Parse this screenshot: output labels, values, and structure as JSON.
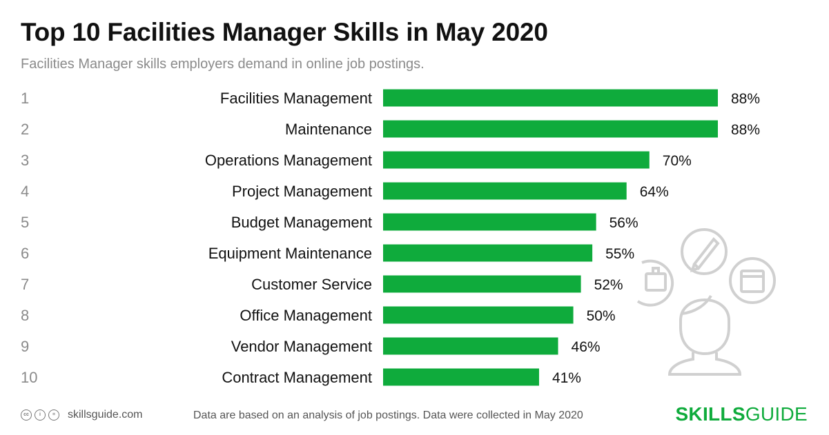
{
  "title": "Top 10 Facilities Manager Skills in May 2020",
  "subtitle": "Facilities Manager skills employers demand in online job postings.",
  "chart_data": {
    "type": "bar",
    "orientation": "horizontal",
    "title": "Top 10 Facilities Manager Skills in May 2020",
    "ranks": [
      "1",
      "2",
      "3",
      "4",
      "5",
      "6",
      "7",
      "8",
      "9",
      "10"
    ],
    "categories": [
      "Facilities Management",
      "Maintenance",
      "Operations Management",
      "Project Management",
      "Budget Management",
      "Equipment Maintenance",
      "Customer Service",
      "Office Management",
      "Vendor Management",
      "Contract Management"
    ],
    "values": [
      88,
      88,
      70,
      64,
      56,
      55,
      52,
      50,
      46,
      41
    ],
    "value_labels": [
      "88%",
      "88%",
      "70%",
      "64%",
      "56%",
      "55%",
      "52%",
      "50%",
      "46%",
      "41%"
    ],
    "unit": "%",
    "xlim": [
      0,
      88
    ],
    "bar_color": "#0fab3c"
  },
  "footer": {
    "license_icons": [
      "cc-icon",
      "by-icon",
      "nd-icon"
    ],
    "license_glyphs": [
      "cc",
      "i",
      "="
    ],
    "site": "skillsguide.com",
    "note": "Data are based on an analysis of job postings. Data were collected in May 2020",
    "brand_bold": "SKILLS",
    "brand_rest": "GUIDE"
  }
}
